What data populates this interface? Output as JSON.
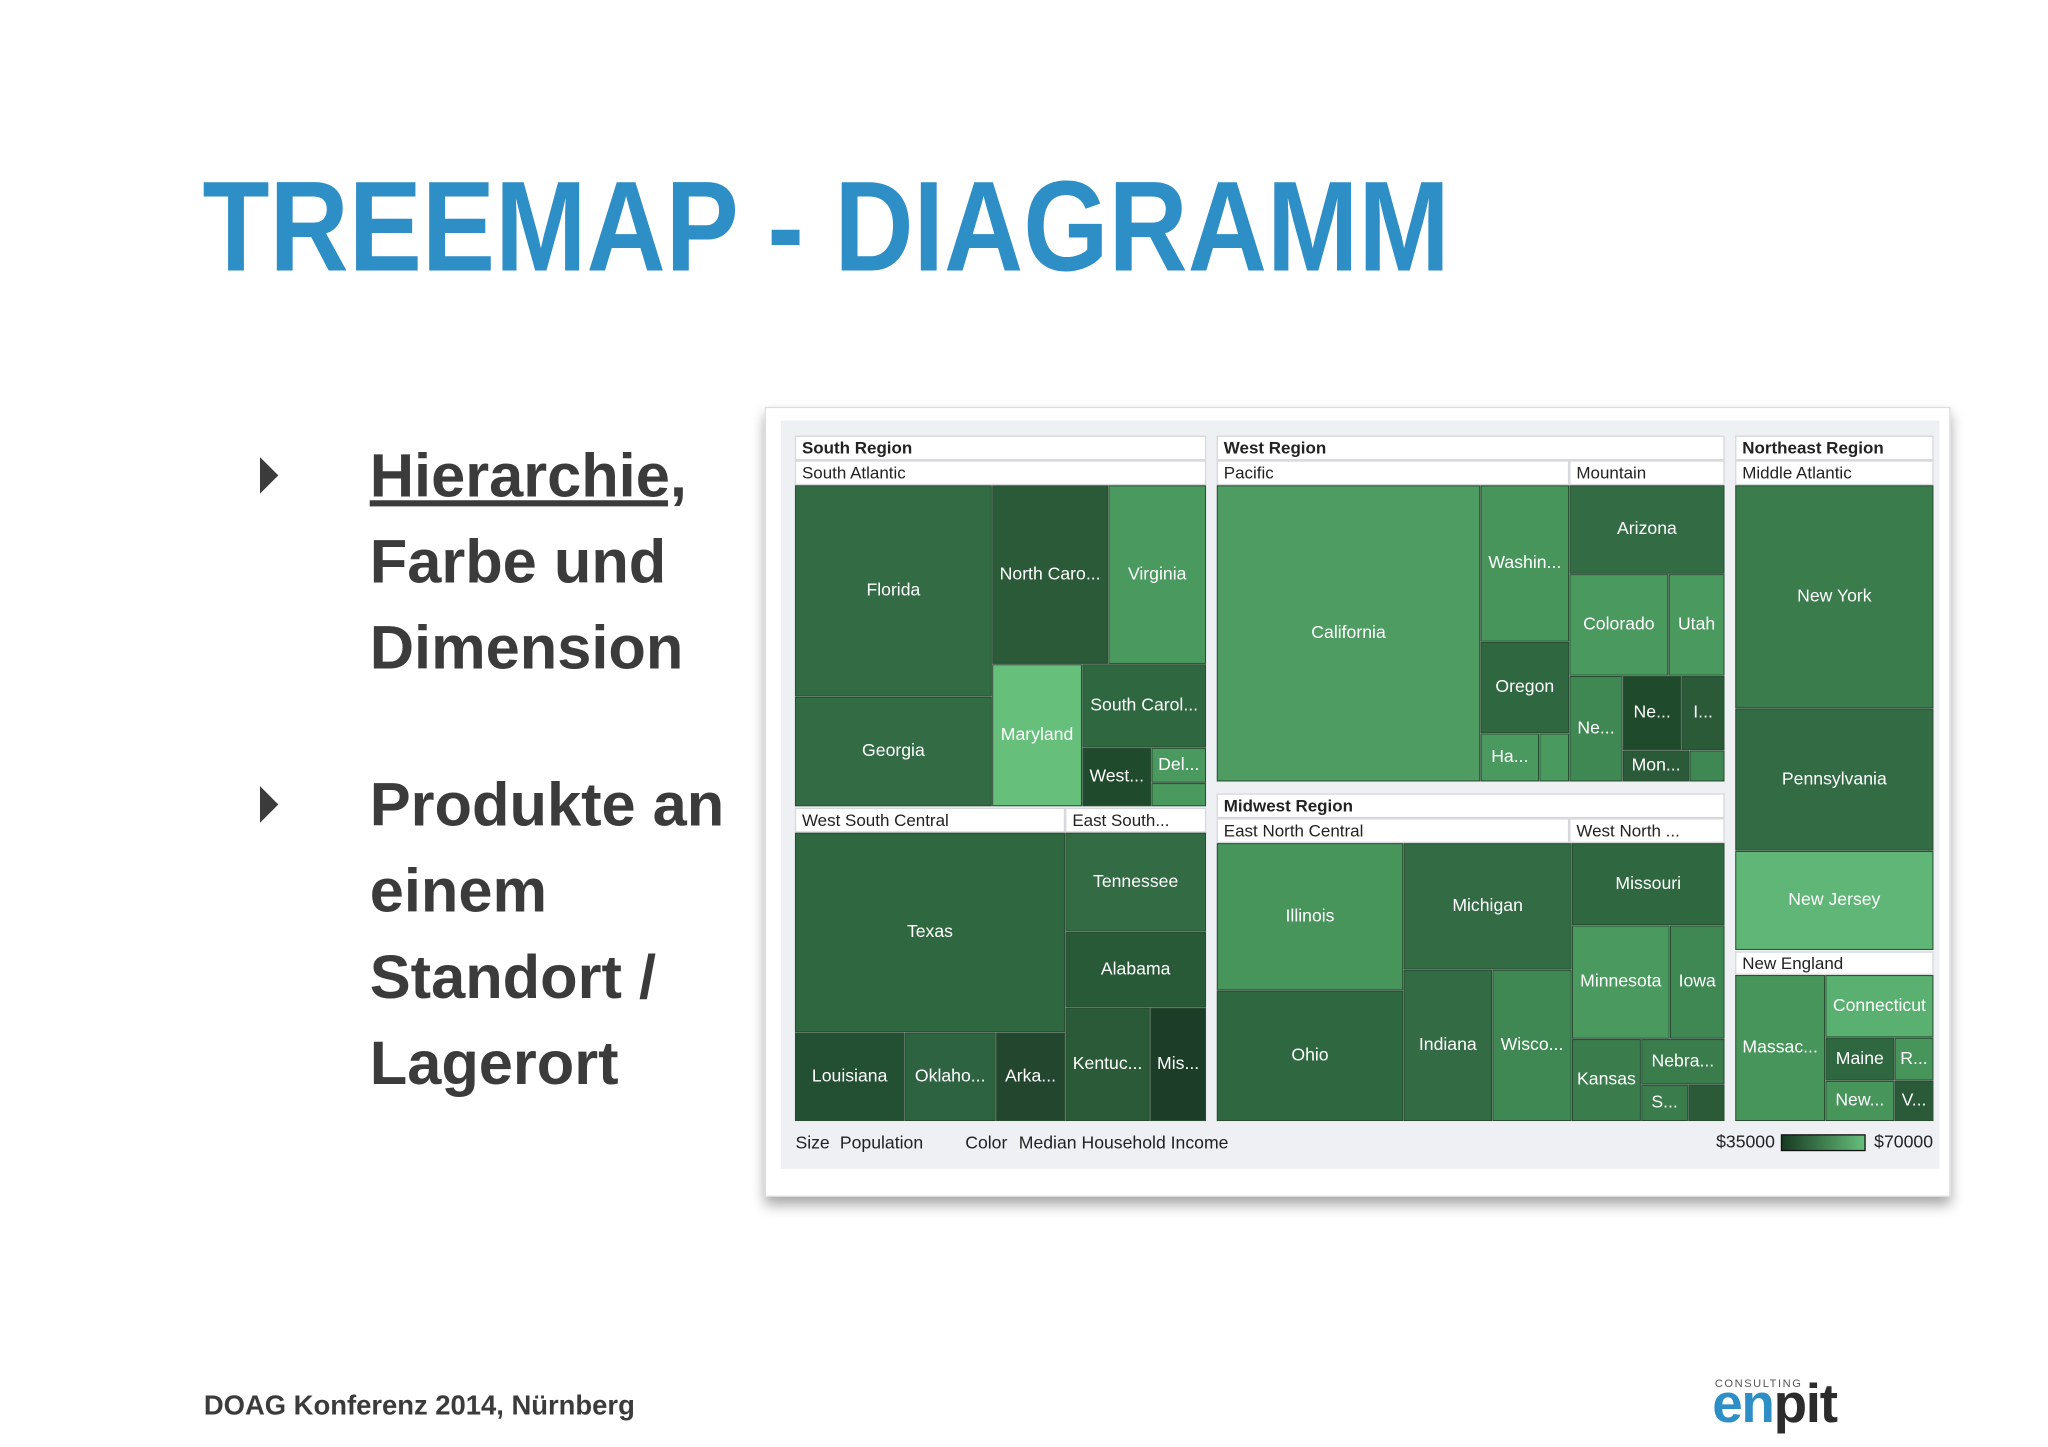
{
  "title": "TREEMAP - DIAGRAMM",
  "bullets": [
    {
      "lines": [
        "Hierarchie,",
        "Farbe und",
        "Dimension"
      ]
    },
    {
      "lines": [
        "Produkte an",
        "einem",
        "Standort /",
        "Lagerort"
      ]
    }
  ],
  "treemap": {
    "headers": [
      "South Region",
      "South Atlantic",
      "West Region",
      "Pacific",
      "Mountain",
      "Northeast Region",
      "Middle Atlantic",
      "West South Central",
      "East South...",
      "Midwest Region",
      "East North Central",
      "West North ...",
      "New England"
    ],
    "cells": [
      "Florida",
      "Georgia",
      "North Caro...",
      "Virginia",
      "Maryland",
      "South Carol...",
      "West...",
      "Del...",
      "Texas",
      "Louisiana",
      "Oklaho...",
      "Arka...",
      "Tennessee",
      "Alabama",
      "Kentuc...",
      "Mis...",
      "California",
      "Washin...",
      "Oregon",
      "Ha...",
      "Arizona",
      "Colorado",
      "Utah",
      "Ne...",
      "Ne...",
      "I...",
      "Mon...",
      "Illinois",
      "Ohio",
      "Michigan",
      "Indiana",
      "Wisco...",
      "Missouri",
      "Minnesota",
      "Iowa",
      "Kansas",
      "Nebra...",
      "S...",
      "New York",
      "Pennsylvania",
      "New Jersey",
      "Massac...",
      "Connecticut",
      "Maine",
      "R...",
      "New...",
      "V..."
    ],
    "size_label": "Size",
    "size_value": "Population",
    "color_label": "Color",
    "color_value": "Median Household Income",
    "legend_min": "$35000",
    "legend_max": "$70000"
  },
  "footer": "DOAG Konferenz 2014, Nürnberg",
  "logo": {
    "tagline": "CONSULTING",
    "prefix": "en",
    "suffix": "pit"
  }
}
